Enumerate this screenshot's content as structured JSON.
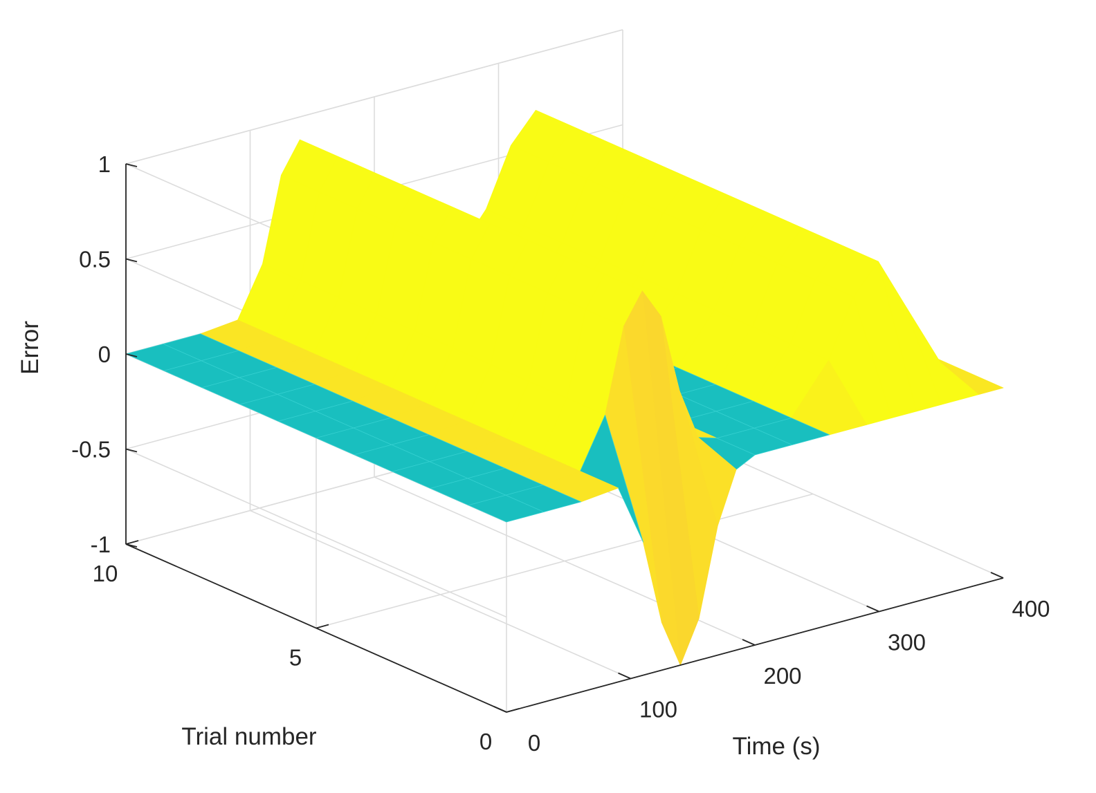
{
  "chart_data": {
    "type": "surface",
    "title": "",
    "xlabel": "Time (s)",
    "ylabel": "Trial number",
    "zlabel": "Error",
    "xlim": [
      0,
      400
    ],
    "ylim": [
      0,
      10
    ],
    "zlim": [
      -1,
      1
    ],
    "xticks": [
      0,
      100,
      200,
      300,
      400
    ],
    "yticks": [
      0,
      5,
      10
    ],
    "zticks": [
      -1,
      -0.5,
      0,
      0.5,
      1
    ],
    "xtick_labels": [
      "0",
      "100",
      "200",
      "300",
      "400"
    ],
    "ytick_labels": [
      "0",
      "5",
      "10"
    ],
    "ztick_labels": [
      "-1",
      "-0.5",
      "0",
      "0.5",
      "1"
    ],
    "grid": true,
    "colormap": "parula",
    "colormap_colors": [
      "#3e26a8",
      "#2d5ce8",
      "#1d95e0",
      "#14b5c3",
      "#40c290",
      "#a8c344",
      "#f1b93b",
      "#fbd92c",
      "#f9fb15"
    ],
    "surface_color_flat": "#19bfbf",
    "color_range": [
      -1,
      0.1
    ],
    "time_samples": [
      0,
      30,
      60,
      90,
      110,
      125,
      140,
      155,
      170,
      185,
      200,
      230,
      260,
      290,
      310,
      330,
      350,
      380,
      400
    ],
    "trials": [
      0,
      1,
      2,
      3,
      4,
      5,
      6,
      7,
      8,
      9,
      10
    ],
    "error_trial0": [
      0,
      0,
      0,
      0.02,
      -0.3,
      -0.75,
      -1,
      -0.78,
      -0.32,
      -0.05,
      0,
      0,
      0,
      0,
      0,
      0,
      0,
      0,
      0
    ],
    "error_trials_1_to_10": [
      0,
      0,
      0,
      0.02,
      0.28,
      0.72,
      0.88,
      0.72,
      0.3,
      0.03,
      0,
      0,
      0,
      0.25,
      0.55,
      0.7,
      0.45,
      0.08,
      0
    ]
  }
}
